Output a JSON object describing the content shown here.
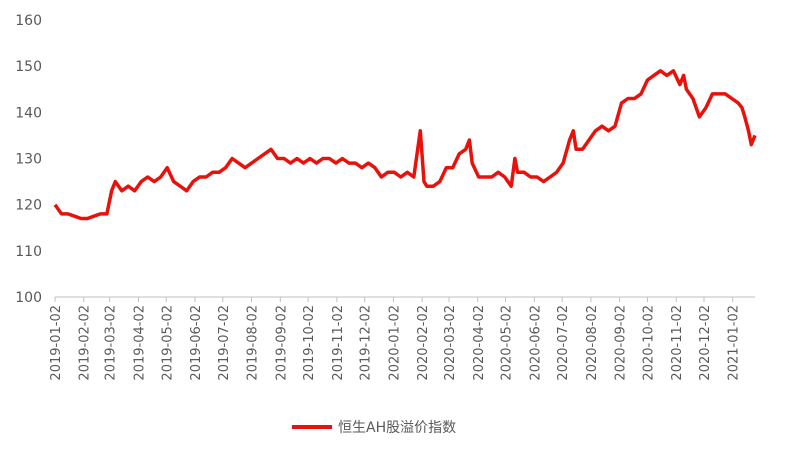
{
  "chart_data": {
    "type": "line",
    "x": [
      "2019-01-02",
      "2019-01-09",
      "2019-01-16",
      "2019-01-23",
      "2019-01-30",
      "2019-02-06",
      "2019-02-13",
      "2019-02-20",
      "2019-02-27",
      "2019-03-04",
      "2019-03-08",
      "2019-03-15",
      "2019-03-22",
      "2019-03-29",
      "2019-04-05",
      "2019-04-12",
      "2019-04-19",
      "2019-04-26",
      "2019-05-03",
      "2019-05-10",
      "2019-05-17",
      "2019-05-24",
      "2019-05-31",
      "2019-06-07",
      "2019-06-14",
      "2019-06-21",
      "2019-06-28",
      "2019-07-05",
      "2019-07-12",
      "2019-07-19",
      "2019-07-26",
      "2019-08-02",
      "2019-08-09",
      "2019-08-16",
      "2019-08-23",
      "2019-08-30",
      "2019-09-06",
      "2019-09-13",
      "2019-09-20",
      "2019-09-27",
      "2019-10-04",
      "2019-10-11",
      "2019-10-18",
      "2019-10-25",
      "2019-11-01",
      "2019-11-08",
      "2019-11-15",
      "2019-11-22",
      "2019-11-29",
      "2019-12-06",
      "2019-12-13",
      "2019-12-20",
      "2019-12-27",
      "2020-01-03",
      "2020-01-10",
      "2020-01-17",
      "2020-01-24",
      "2020-01-31",
      "2020-02-04",
      "2020-02-07",
      "2020-02-14",
      "2020-02-21",
      "2020-02-28",
      "2020-03-06",
      "2020-03-13",
      "2020-03-20",
      "2020-03-24",
      "2020-03-27",
      "2020-04-03",
      "2020-04-10",
      "2020-04-17",
      "2020-04-24",
      "2020-05-01",
      "2020-05-08",
      "2020-05-12",
      "2020-05-15",
      "2020-05-22",
      "2020-05-29",
      "2020-06-05",
      "2020-06-12",
      "2020-06-19",
      "2020-06-26",
      "2020-07-03",
      "2020-07-10",
      "2020-07-14",
      "2020-07-17",
      "2020-07-24",
      "2020-07-31",
      "2020-08-07",
      "2020-08-14",
      "2020-08-21",
      "2020-08-28",
      "2020-09-04",
      "2020-09-11",
      "2020-09-18",
      "2020-09-25",
      "2020-10-02",
      "2020-10-09",
      "2020-10-16",
      "2020-10-23",
      "2020-10-30",
      "2020-11-06",
      "2020-11-10",
      "2020-11-13",
      "2020-11-20",
      "2020-11-27",
      "2020-12-04",
      "2020-12-11",
      "2020-12-18",
      "2020-12-25",
      "2021-01-01",
      "2021-01-08",
      "2021-01-12",
      "2021-01-15",
      "2021-01-19",
      "2021-01-22",
      "2021-01-26"
    ],
    "series": [
      {
        "name": "恒生AH股溢价指数",
        "color": "#e8120c",
        "values": [
          120,
          118,
          118,
          117.5,
          117,
          117,
          117.5,
          118,
          118,
          123,
          125,
          123,
          124,
          123,
          125,
          126,
          125,
          126,
          128,
          125,
          124,
          123,
          125,
          126,
          126,
          127,
          127,
          128,
          130,
          129,
          128,
          129,
          130,
          131,
          132,
          130,
          130,
          129,
          130,
          129,
          130,
          129,
          130,
          130,
          129,
          130,
          129,
          129,
          128,
          129,
          128,
          126,
          127,
          127,
          126,
          127,
          126,
          136,
          125,
          124,
          124,
          125,
          128,
          128,
          131,
          132,
          134,
          129,
          126,
          126,
          126,
          127,
          126,
          124,
          130,
          127,
          127,
          126,
          126,
          125,
          126,
          127,
          129,
          134,
          136,
          132,
          132,
          134,
          136,
          137,
          136,
          137,
          142,
          143,
          143,
          144,
          147,
          148,
          149,
          148,
          149,
          146,
          148,
          145,
          143,
          139,
          141,
          144,
          144,
          144,
          143,
          142,
          141,
          139,
          136,
          133,
          135
        ]
      }
    ],
    "xlim": [
      "2019-01-02",
      "2021-01-26"
    ],
    "xticks": [
      "2019-01-02",
      "2019-02-02",
      "2019-03-02",
      "2019-04-02",
      "2019-05-02",
      "2019-06-02",
      "2019-07-02",
      "2019-08-02",
      "2019-09-02",
      "2019-10-02",
      "2019-11-02",
      "2019-12-02",
      "2020-01-02",
      "2020-02-02",
      "2020-03-02",
      "2020-04-02",
      "2020-05-02",
      "2020-06-02",
      "2020-07-02",
      "2020-08-02",
      "2020-09-02",
      "2020-10-02",
      "2020-11-02",
      "2020-12-02",
      "2021-01-02"
    ],
    "ylim": [
      100,
      160
    ],
    "yticks": [
      100,
      110,
      120,
      130,
      140,
      150,
      160
    ],
    "legend": "bottom"
  }
}
